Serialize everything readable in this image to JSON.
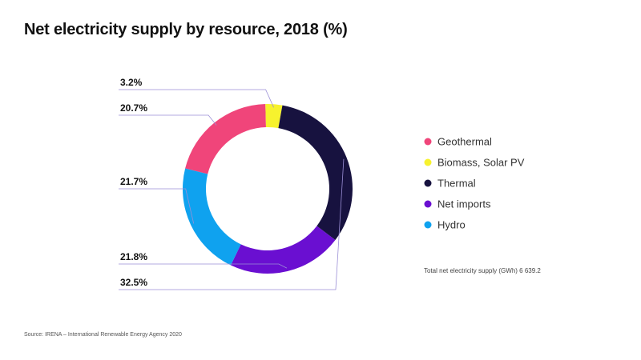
{
  "chart_data": {
    "type": "pie",
    "style": "donut",
    "title": "Net electricity supply by resource, 2018 (%)",
    "categories": [
      "Geothermal",
      "Biomass, Solar PV",
      "Thermal",
      "Net imports",
      "Hydro"
    ],
    "values": [
      20.7,
      3.2,
      32.5,
      21.8,
      21.7
    ],
    "value_labels": [
      "20.7%",
      "3.2%",
      "32.5%",
      "21.8%",
      "21.7%"
    ],
    "colors": [
      "#f0457a",
      "#f7f22e",
      "#17123f",
      "#6a0fd1",
      "#0fa2ef"
    ],
    "legend_position": "right",
    "note": "Total net electricity supply (GWh) 6 639.2"
  },
  "source": "Source: IRENA – International Renewable Energy Agency 2020"
}
